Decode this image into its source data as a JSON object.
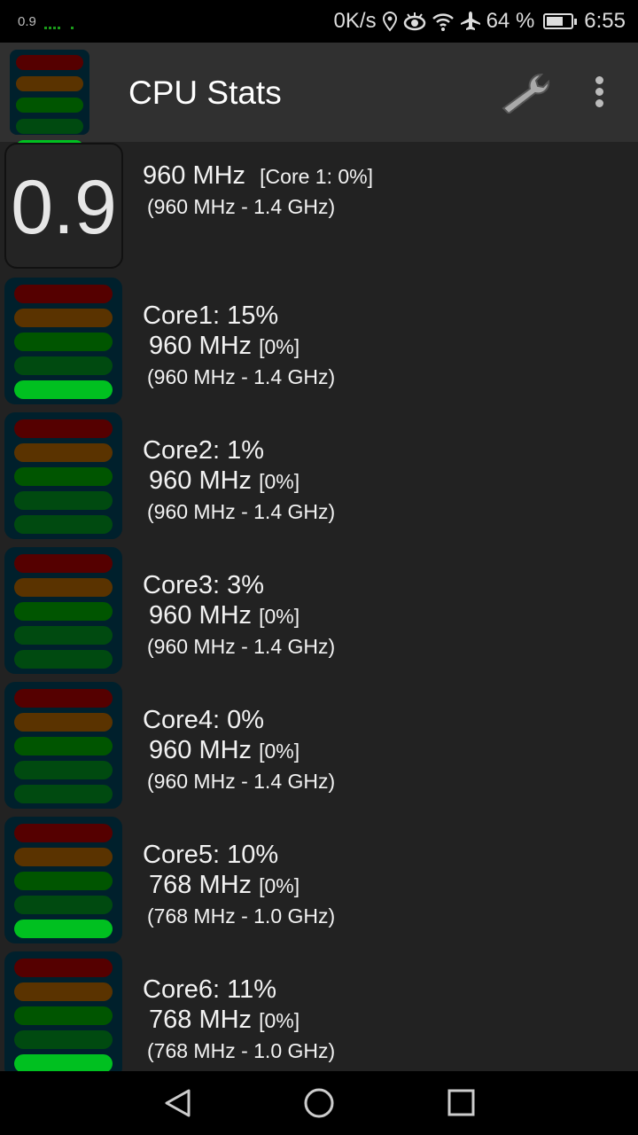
{
  "status_bar": {
    "load": "0.9",
    "net_speed": "0K/s",
    "battery": "64 %",
    "battery_level": 0.64,
    "time": "6:55",
    "icons": [
      "location-icon",
      "eye-icon",
      "wifi-icon",
      "airplane-icon",
      "battery-icon"
    ]
  },
  "app_bar": {
    "title": "CPU Stats",
    "actions": [
      "wrench-icon",
      "more-vert-icon"
    ]
  },
  "colors": {
    "bar_levels": [
      "#550000",
      "#5a3300",
      "#005500",
      "#004a10",
      "#00c020"
    ],
    "bar_off": "#004a10",
    "gauge_bg": "#00202c"
  },
  "summary": {
    "load": "0.9",
    "freq": "960 MHz",
    "core_info": "[Core 1: 0%]",
    "range": "(960 MHz - 1.4 GHz)"
  },
  "cores": [
    {
      "label": "Core1: 15%",
      "usage": 15,
      "freq": "960 MHz",
      "pct": "[0%]",
      "range": "(960 MHz - 1.4 GHz)",
      "lit": 1
    },
    {
      "label": "Core2: 1%",
      "usage": 1,
      "freq": "960 MHz",
      "pct": "[0%]",
      "range": "(960 MHz - 1.4 GHz)",
      "lit": 0
    },
    {
      "label": "Core3: 3%",
      "usage": 3,
      "freq": "960 MHz",
      "pct": "[0%]",
      "range": "(960 MHz - 1.4 GHz)",
      "lit": 0
    },
    {
      "label": "Core4: 0%",
      "usage": 0,
      "freq": "960 MHz",
      "pct": "[0%]",
      "range": "(960 MHz - 1.4 GHz)",
      "lit": 0
    },
    {
      "label": "Core5: 10%",
      "usage": 10,
      "freq": "768 MHz",
      "pct": "[0%]",
      "range": "(768 MHz - 1.0 GHz)",
      "lit": 1
    },
    {
      "label": "Core6: 11%",
      "usage": 11,
      "freq": "768 MHz",
      "pct": "[0%]",
      "range": "(768 MHz - 1.0 GHz)",
      "lit": 1
    }
  ]
}
